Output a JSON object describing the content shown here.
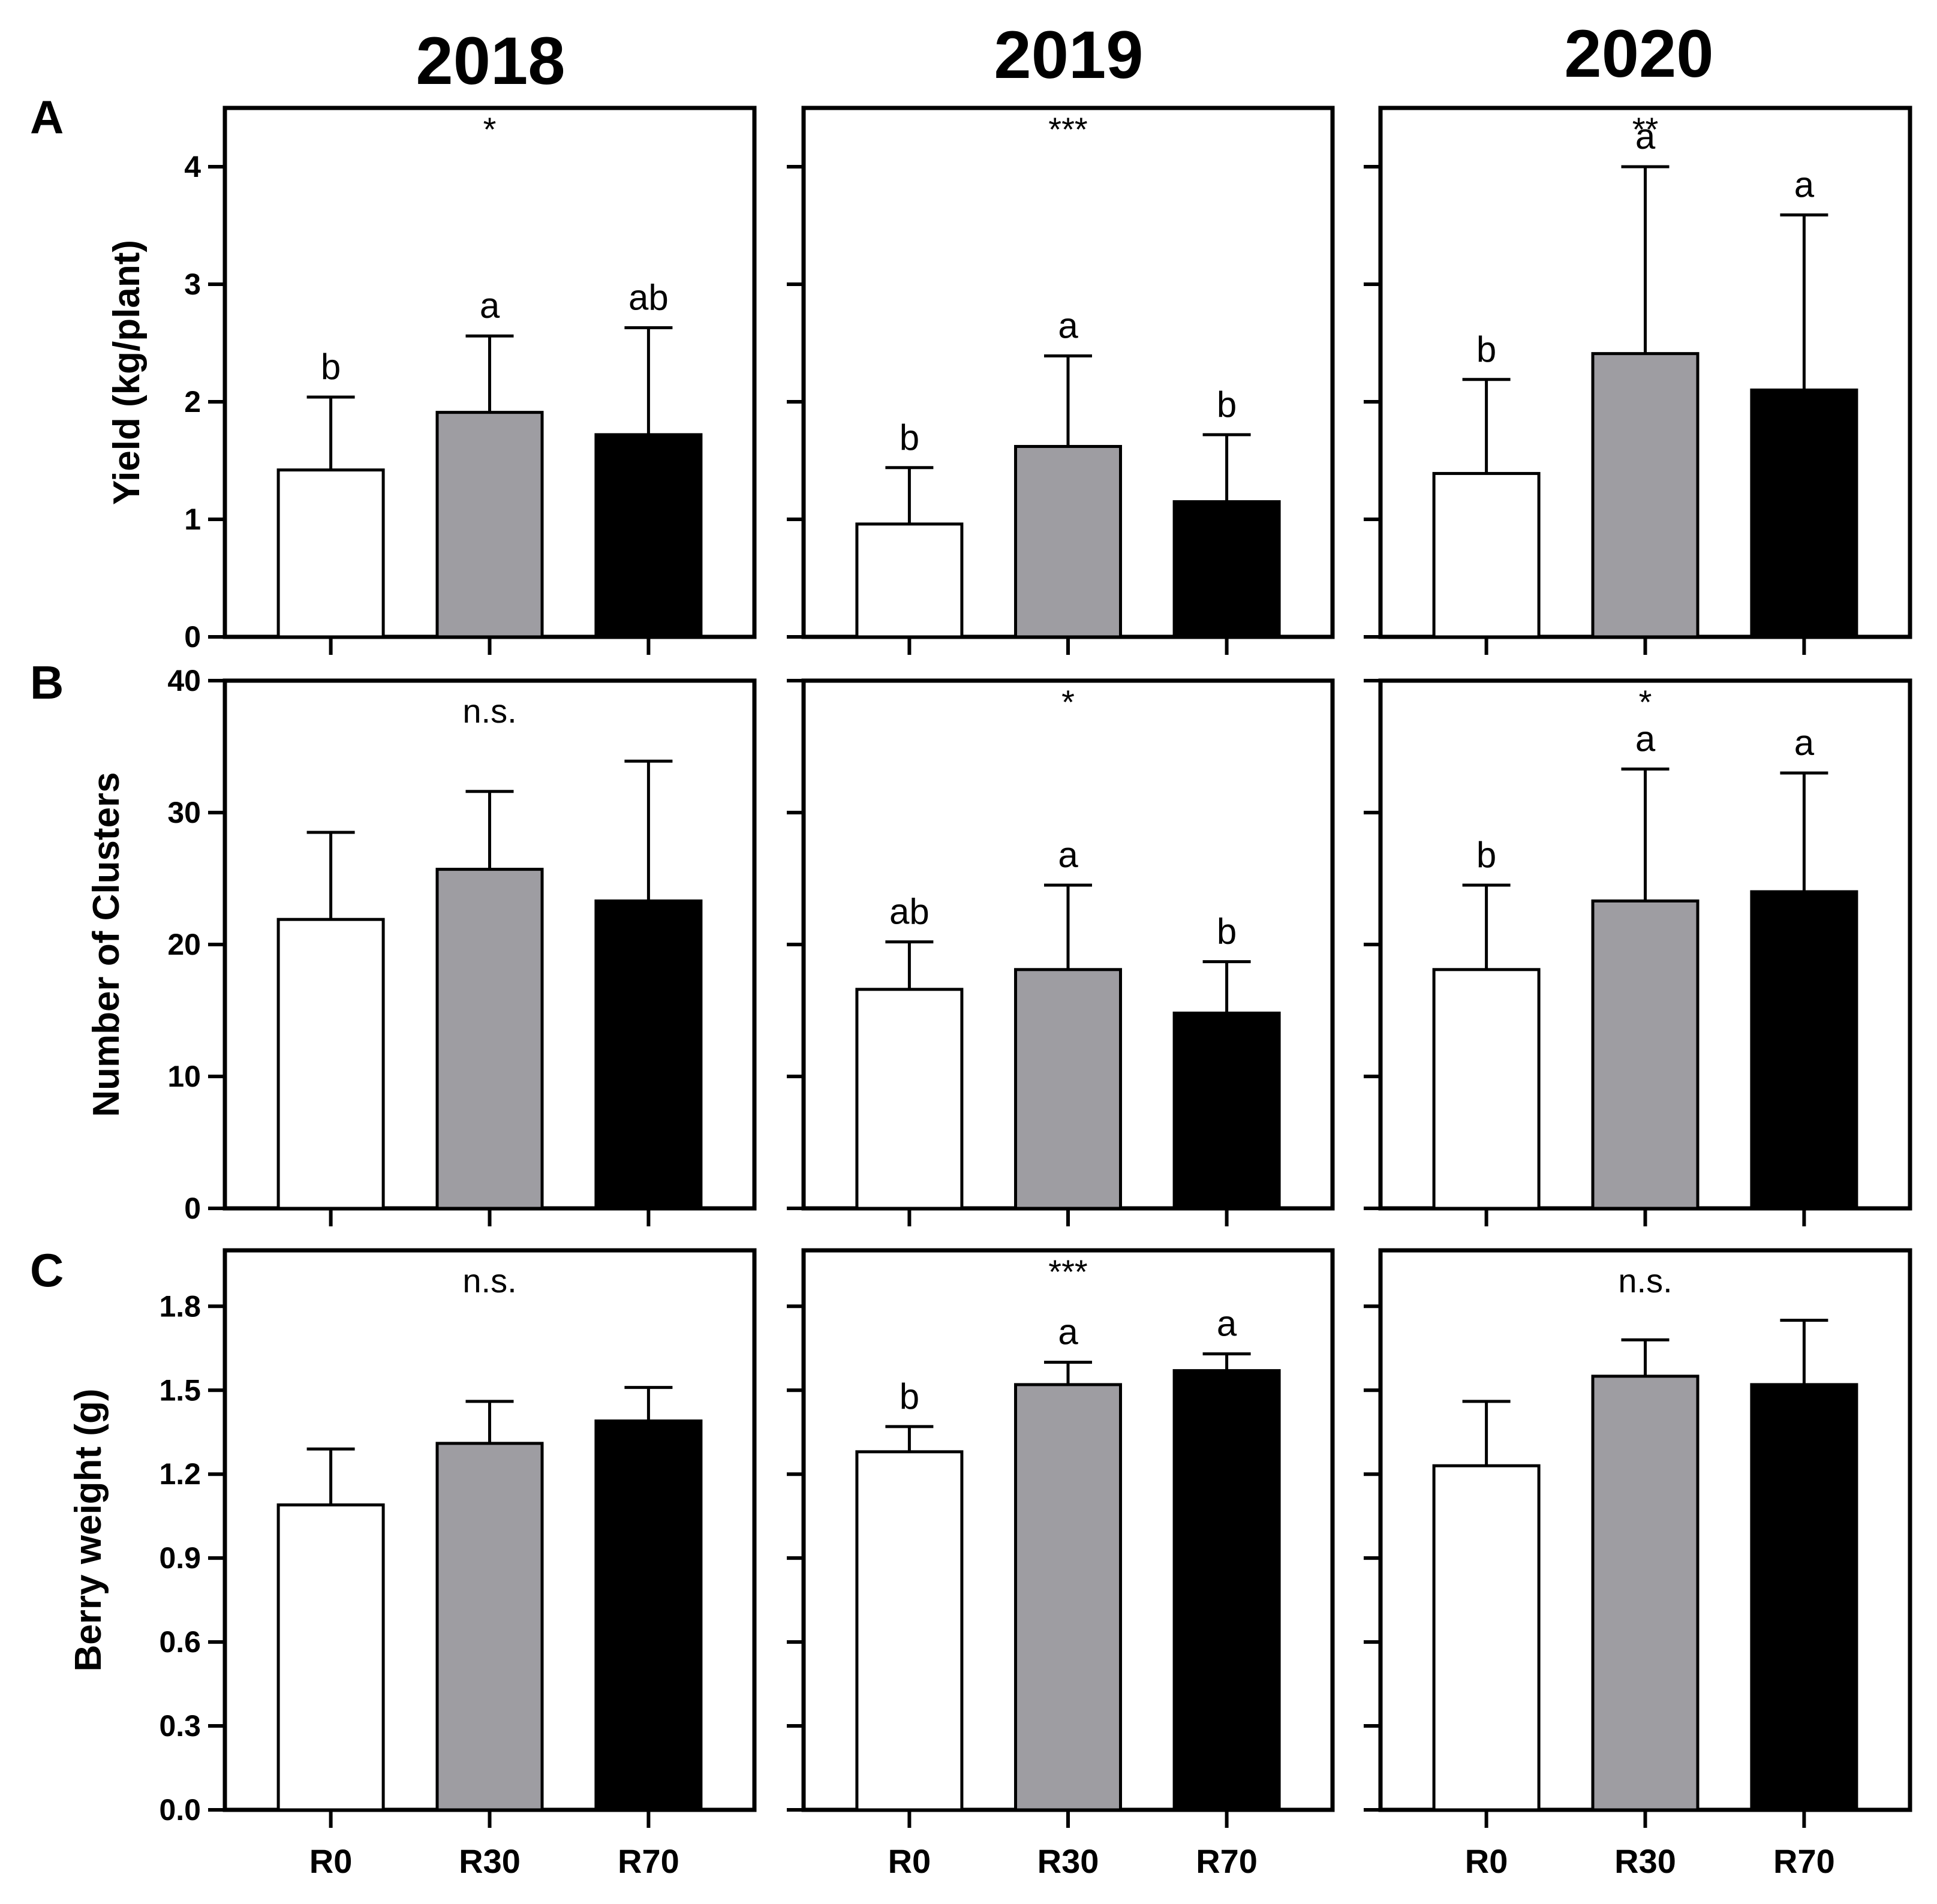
{
  "figure": {
    "years": [
      "2018",
      "2019",
      "2020"
    ],
    "row_letters": [
      "A",
      "B",
      "C"
    ],
    "categories": [
      "R0",
      "R30",
      "R70"
    ],
    "bar_colors": {
      "R0": "#ffffff",
      "R30": "#9e9da2",
      "R70": "#000000"
    }
  },
  "chart_data": [
    {
      "type": "bar",
      "row": "A",
      "year": "2018",
      "ylabel": "Yield (kg/plant)",
      "ylim": [
        0,
        4.5
      ],
      "yticks": [
        "0",
        "1",
        "2",
        "3",
        "4"
      ],
      "show_ytick_labels": true,
      "categories": [
        "R0",
        "R30",
        "R70"
      ],
      "values": [
        1.42,
        1.91,
        1.72
      ],
      "errors": [
        0.62,
        0.65,
        0.91
      ],
      "letters": [
        "b",
        "a",
        "ab"
      ],
      "significance": "*"
    },
    {
      "type": "bar",
      "row": "A",
      "year": "2019",
      "ylabel": "",
      "ylim": [
        0,
        4.5
      ],
      "yticks": [
        "0",
        "1",
        "2",
        "3",
        "4"
      ],
      "show_ytick_labels": false,
      "categories": [
        "R0",
        "R30",
        "R70"
      ],
      "values": [
        0.96,
        1.62,
        1.15
      ],
      "errors": [
        0.48,
        0.77,
        0.57
      ],
      "letters": [
        "b",
        "a",
        "b"
      ],
      "significance": "***"
    },
    {
      "type": "bar",
      "row": "A",
      "year": "2020",
      "ylabel": "",
      "ylim": [
        0,
        4.5
      ],
      "yticks": [
        "0",
        "1",
        "2",
        "3",
        "4"
      ],
      "show_ytick_labels": false,
      "categories": [
        "R0",
        "R30",
        "R70"
      ],
      "values": [
        1.39,
        2.41,
        2.1
      ],
      "errors": [
        0.8,
        1.59,
        1.49
      ],
      "letters": [
        "b",
        "a",
        "a"
      ],
      "significance": "**"
    },
    {
      "type": "bar",
      "row": "B",
      "year": "2018",
      "ylabel": "Number of Clusters",
      "ylim": [
        0,
        40
      ],
      "yticks": [
        "0",
        "10",
        "20",
        "30",
        "40"
      ],
      "show_ytick_labels": true,
      "categories": [
        "R0",
        "R30",
        "R70"
      ],
      "values": [
        21.9,
        25.7,
        23.3
      ],
      "errors": [
        6.6,
        5.9,
        10.6
      ],
      "letters": [
        "",
        "",
        ""
      ],
      "significance": "n.s."
    },
    {
      "type": "bar",
      "row": "B",
      "year": "2019",
      "ylabel": "",
      "ylim": [
        0,
        40
      ],
      "yticks": [
        "0",
        "10",
        "20",
        "30",
        "40"
      ],
      "show_ytick_labels": false,
      "categories": [
        "R0",
        "R30",
        "R70"
      ],
      "values": [
        16.6,
        18.1,
        14.8
      ],
      "errors": [
        3.6,
        6.4,
        3.9
      ],
      "letters": [
        "ab",
        "a",
        "b"
      ],
      "significance": "*"
    },
    {
      "type": "bar",
      "row": "B",
      "year": "2020",
      "ylabel": "",
      "ylim": [
        0,
        40
      ],
      "yticks": [
        "0",
        "10",
        "20",
        "30",
        "40"
      ],
      "show_ytick_labels": false,
      "categories": [
        "R0",
        "R30",
        "R70"
      ],
      "values": [
        18.1,
        23.3,
        24.0
      ],
      "errors": [
        6.4,
        10.0,
        9.0
      ],
      "letters": [
        "b",
        "a",
        "a"
      ],
      "significance": "*"
    },
    {
      "type": "bar",
      "row": "C",
      "year": "2018",
      "ylabel": "Berry weight (g)",
      "ylim": [
        0,
        2.0
      ],
      "yticks": [
        "0.0",
        "0.3",
        "0.6",
        "0.9",
        "1.2",
        "1.5",
        "1.8"
      ],
      "show_ytick_labels": true,
      "categories": [
        "R0",
        "R30",
        "R70"
      ],
      "values": [
        1.09,
        1.31,
        1.39
      ],
      "errors": [
        0.2,
        0.15,
        0.12
      ],
      "letters": [
        "",
        "",
        ""
      ],
      "significance": "n.s."
    },
    {
      "type": "bar",
      "row": "C",
      "year": "2019",
      "ylabel": "",
      "ylim": [
        0,
        2.0
      ],
      "yticks": [
        "0.0",
        "0.3",
        "0.6",
        "0.9",
        "1.2",
        "1.5",
        "1.8"
      ],
      "show_ytick_labels": false,
      "categories": [
        "R0",
        "R30",
        "R70"
      ],
      "values": [
        1.28,
        1.52,
        1.57
      ],
      "errors": [
        0.09,
        0.08,
        0.06
      ],
      "letters": [
        "b",
        "a",
        "a"
      ],
      "significance": "***"
    },
    {
      "type": "bar",
      "row": "C",
      "year": "2020",
      "ylabel": "",
      "ylim": [
        0,
        2.0
      ],
      "yticks": [
        "0.0",
        "0.3",
        "0.6",
        "0.9",
        "1.2",
        "1.5",
        "1.8"
      ],
      "show_ytick_labels": false,
      "categories": [
        "R0",
        "R30",
        "R70"
      ],
      "values": [
        1.23,
        1.55,
        1.52
      ],
      "errors": [
        0.23,
        0.13,
        0.23
      ],
      "letters": [
        "",
        "",
        ""
      ],
      "significance": "n.s."
    }
  ]
}
